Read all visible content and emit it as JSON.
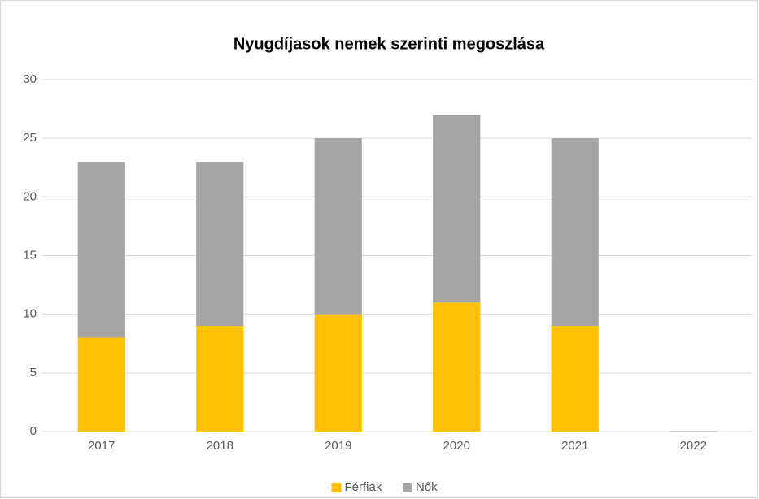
{
  "chart_data": {
    "type": "stacked_bar",
    "title": "Nyugdíjasok nemek szerinti megoszlása",
    "categories": [
      "2017",
      "2018",
      "2019",
      "2020",
      "2021",
      "2022"
    ],
    "series": [
      {
        "name": "Férfiak",
        "color": "#ffc000",
        "values": [
          8,
          9,
          10,
          11,
          9,
          0
        ]
      },
      {
        "name": "Nők",
        "color": "#a5a5a5",
        "values": [
          15,
          14,
          15,
          16,
          16,
          0
        ]
      }
    ],
    "ylim": [
      0,
      30
    ],
    "yticks": [
      0,
      5,
      10,
      15,
      20,
      25,
      30
    ],
    "grid": true,
    "legend": "bottom"
  }
}
